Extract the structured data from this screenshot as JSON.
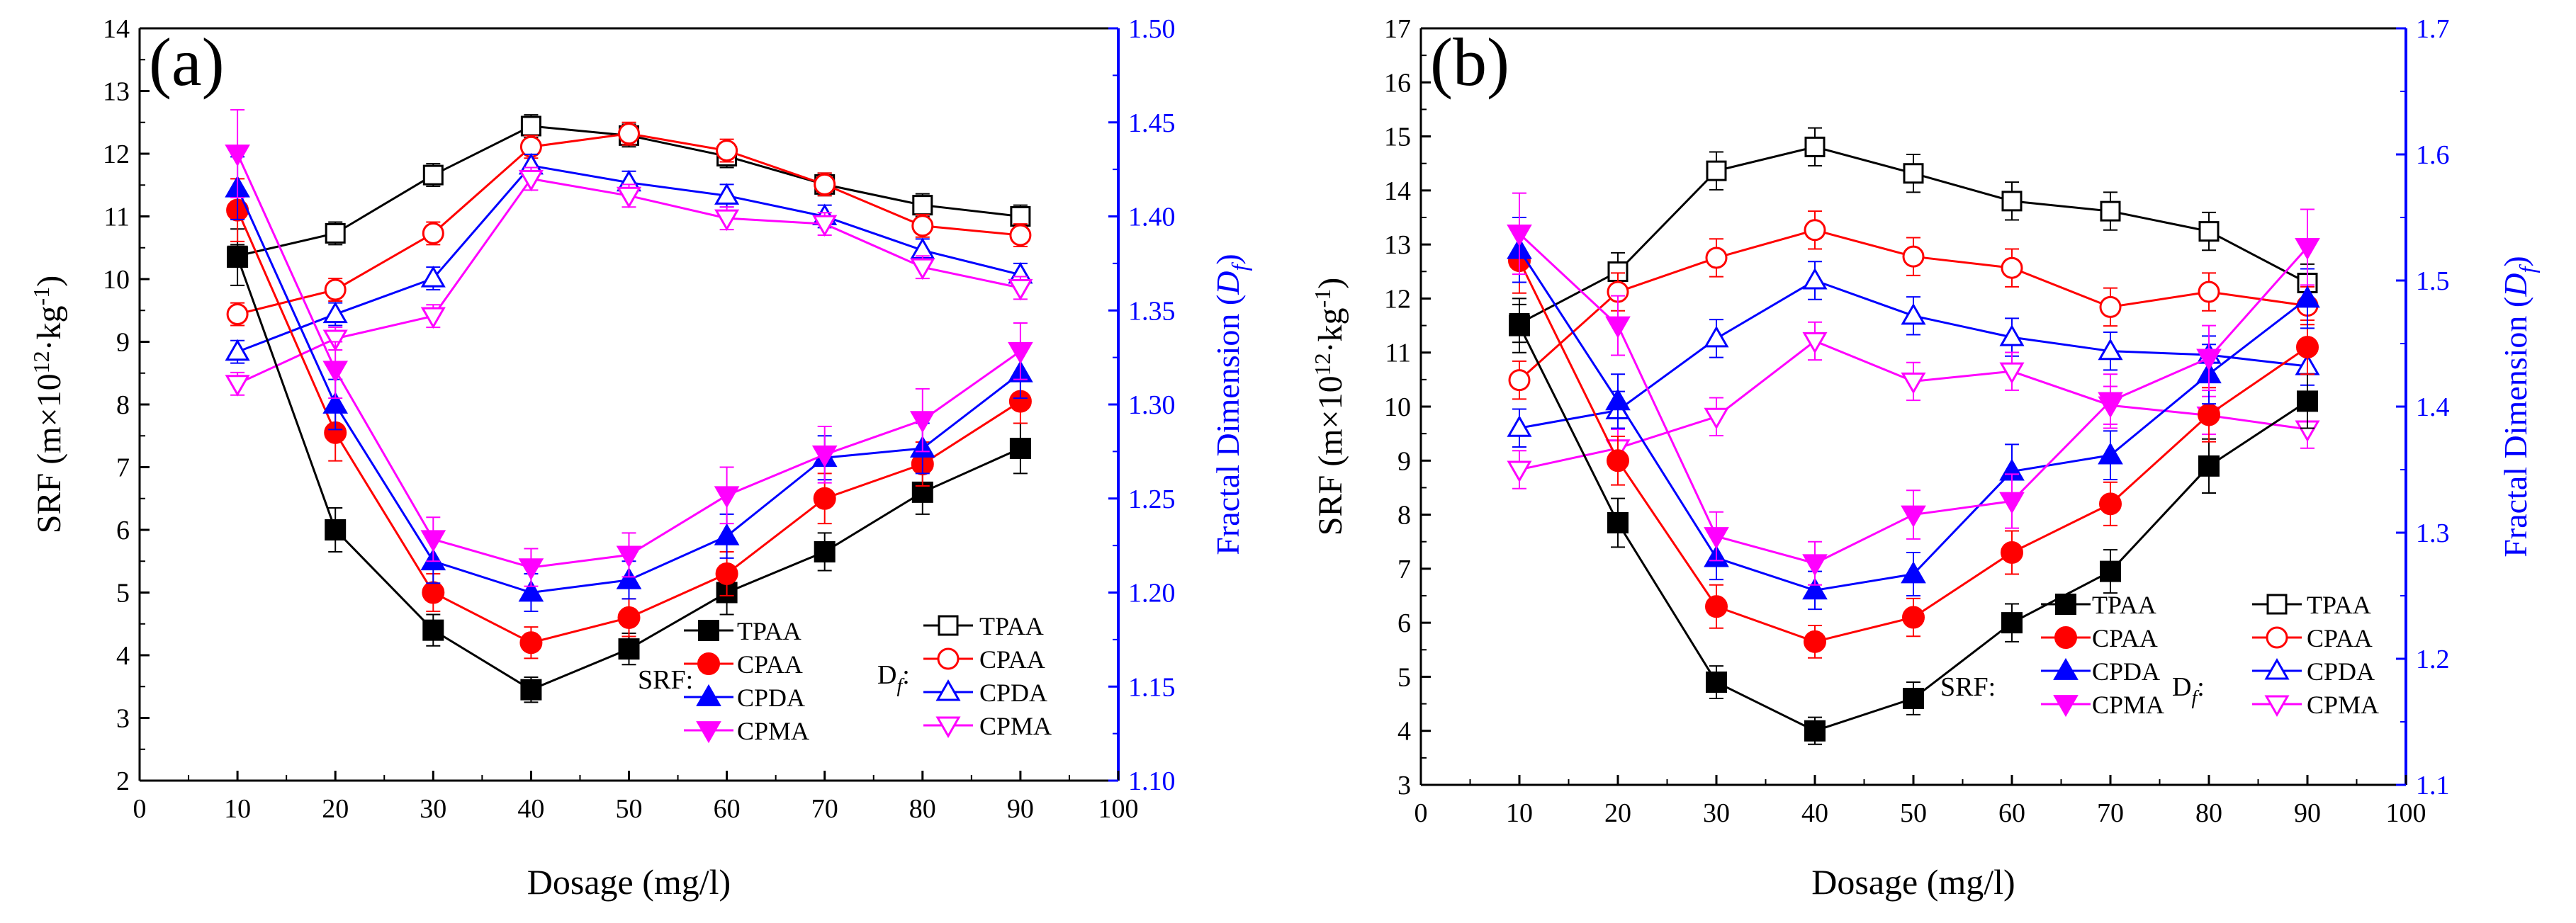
{
  "chart_data": [
    {
      "type": "line",
      "panel_label": "(a)",
      "xlabel": "Dosage (mg/l)",
      "ylabel_left": {
        "prefix": "SRF (m×10",
        "sup": "12",
        "suffix": "·kg",
        "sup2": "-1",
        "close": ")"
      },
      "ylabel_right": {
        "text": "Fractal Dimension (",
        "var": "D",
        "sub": "f",
        "close": ")"
      },
      "xlim": [
        0,
        100
      ],
      "xticks": [
        "0",
        "10",
        "20",
        "30",
        "40",
        "50",
        "60",
        "70",
        "80",
        "90",
        "100"
      ],
      "ylim_left": [
        2,
        14
      ],
      "yticks_left": [
        "2",
        "3",
        "4",
        "5",
        "6",
        "7",
        "8",
        "9",
        "10",
        "11",
        "12",
        "13",
        "14"
      ],
      "ylim_right": [
        1.1,
        1.5
      ],
      "yticks_right": [
        "1.10",
        "1.15",
        "1.20",
        "1.25",
        "1.30",
        "1.35",
        "1.40",
        "1.45",
        "1.50"
      ],
      "x": [
        10,
        20,
        30,
        40,
        50,
        60,
        70,
        80,
        90
      ],
      "legend": {
        "srf_group": "SRF:",
        "df_group": "D",
        "df_sub": "f",
        "df_colon": ":"
      },
      "srf_series": [
        {
          "name": "TPAA",
          "color": "#000000",
          "marker": "square",
          "values": [
            10.35,
            6.0,
            4.4,
            3.45,
            4.1,
            5.0,
            5.65,
            6.6,
            7.3
          ],
          "err": [
            0.45,
            0.35,
            0.25,
            0.2,
            0.25,
            0.35,
            0.3,
            0.35,
            0.4
          ]
        },
        {
          "name": "CPAA",
          "color": "#ff0000",
          "marker": "circle",
          "values": [
            11.1,
            7.55,
            5.0,
            4.2,
            4.6,
            5.3,
            6.5,
            7.05,
            8.05
          ],
          "err": [
            0.5,
            0.45,
            0.3,
            0.25,
            0.3,
            0.35,
            0.4,
            0.35,
            0.35
          ]
        },
        {
          "name": "CPDA",
          "color": "#0000ff",
          "marker": "triangle-up",
          "values": [
            11.45,
            8.0,
            5.5,
            5.0,
            5.2,
            5.9,
            7.15,
            7.3,
            8.5
          ],
          "err": [
            0.5,
            0.4,
            0.35,
            0.3,
            0.3,
            0.35,
            0.35,
            0.4,
            0.4
          ]
        },
        {
          "name": "CPMA",
          "color": "#ff00ff",
          "marker": "triangle-down",
          "values": [
            12.0,
            8.55,
            5.85,
            5.4,
            5.6,
            6.55,
            7.2,
            7.75,
            8.85
          ],
          "err": [
            0.7,
            0.45,
            0.35,
            0.3,
            0.35,
            0.45,
            0.45,
            0.5,
            0.45
          ]
        }
      ],
      "df_series": [
        {
          "name": "TPAA",
          "color": "#000000",
          "marker": "square-open",
          "values": [
            1.379,
            1.391,
            1.422,
            1.448,
            1.443,
            1.432,
            1.417,
            1.406,
            1.4
          ],
          "err": [
            0.006,
            0.006,
            0.006,
            0.006,
            0.006,
            0.006,
            0.006,
            0.006,
            0.006
          ]
        },
        {
          "name": "CPAA",
          "color": "#ff0000",
          "marker": "circle-open",
          "values": [
            1.348,
            1.361,
            1.391,
            1.437,
            1.444,
            1.435,
            1.417,
            1.395,
            1.39
          ],
          "err": [
            0.006,
            0.006,
            0.006,
            0.006,
            0.006,
            0.006,
            0.006,
            0.006,
            0.006
          ]
        },
        {
          "name": "CPDA",
          "color": "#0000ff",
          "marker": "triangle-up-open",
          "values": [
            1.328,
            1.348,
            1.367,
            1.427,
            1.418,
            1.411,
            1.4,
            1.382,
            1.369
          ],
          "err": [
            0.006,
            0.006,
            0.006,
            0.006,
            0.006,
            0.006,
            0.006,
            0.006,
            0.006
          ]
        },
        {
          "name": "CPMA",
          "color": "#ff00ff",
          "marker": "triangle-down-open",
          "values": [
            1.311,
            1.335,
            1.347,
            1.42,
            1.411,
            1.399,
            1.396,
            1.373,
            1.362
          ],
          "err": [
            0.006,
            0.006,
            0.006,
            0.006,
            0.006,
            0.006,
            0.006,
            0.006,
            0.006
          ]
        }
      ]
    },
    {
      "type": "line",
      "panel_label": "(b)",
      "xlabel": "Dosage (mg/l)",
      "ylabel_left": {
        "prefix": "SRF (m×10",
        "sup": "12",
        "suffix": "·kg",
        "sup2": "-1",
        "close": ")"
      },
      "ylabel_right": {
        "text": "Fractal Dimension (",
        "var": "D",
        "sub": "f",
        "close": ")"
      },
      "xlim": [
        0,
        100
      ],
      "xticks": [
        "0",
        "10",
        "20",
        "30",
        "40",
        "50",
        "60",
        "70",
        "80",
        "90",
        "100"
      ],
      "ylim_left": [
        3,
        17
      ],
      "yticks_left": [
        "3",
        "4",
        "5",
        "6",
        "7",
        "8",
        "9",
        "10",
        "11",
        "12",
        "13",
        "14",
        "15",
        "16",
        "17"
      ],
      "ylim_right": [
        1.1,
        1.7
      ],
      "yticks_right": [
        "1.1",
        "1.2",
        "1.3",
        "1.4",
        "1.5",
        "1.6",
        "1.7"
      ],
      "x": [
        10,
        20,
        30,
        40,
        50,
        60,
        70,
        80,
        90
      ],
      "legend": {
        "srf_group": "SRF:",
        "df_group": "D",
        "df_sub": "f",
        "df_colon": ":"
      },
      "srf_series": [
        {
          "name": "TPAA",
          "color": "#000000",
          "marker": "square",
          "values": [
            11.5,
            7.85,
            4.9,
            4.0,
            4.6,
            6.0,
            6.95,
            8.9,
            10.1
          ],
          "err": [
            0.5,
            0.45,
            0.3,
            0.25,
            0.3,
            0.35,
            0.4,
            0.5,
            0.5
          ]
        },
        {
          "name": "CPAA",
          "color": "#ff0000",
          "marker": "circle",
          "values": [
            12.7,
            9.0,
            6.3,
            5.65,
            6.1,
            7.3,
            8.2,
            9.85,
            11.1
          ],
          "err": [
            0.6,
            0.45,
            0.4,
            0.3,
            0.35,
            0.4,
            0.4,
            0.5,
            0.5
          ]
        },
        {
          "name": "CPDA",
          "color": "#0000ff",
          "marker": "triangle-up",
          "values": [
            12.9,
            10.1,
            7.2,
            6.6,
            6.9,
            8.8,
            9.1,
            10.6,
            12.0
          ],
          "err": [
            0.6,
            0.5,
            0.4,
            0.35,
            0.4,
            0.5,
            0.45,
            0.55,
            0.55
          ]
        },
        {
          "name": "CPMA",
          "color": "#ff00ff",
          "marker": "triangle-down",
          "values": [
            13.2,
            11.5,
            7.6,
            7.1,
            8.0,
            8.25,
            10.1,
            10.9,
            12.95
          ],
          "err": [
            0.75,
            0.55,
            0.45,
            0.4,
            0.45,
            0.5,
            0.5,
            0.6,
            0.7
          ]
        }
      ],
      "df_series": [
        {
          "name": "TPAA",
          "color": "#000000",
          "marker": "square-open",
          "values": [
            1.466,
            1.507,
            1.587,
            1.606,
            1.585,
            1.563,
            1.555,
            1.539,
            1.498
          ],
          "err": [
            0.015,
            0.015,
            0.015,
            0.015,
            0.015,
            0.015,
            0.015,
            0.015,
            0.015
          ]
        },
        {
          "name": "CPAA",
          "color": "#ff0000",
          "marker": "circle-open",
          "values": [
            1.421,
            1.491,
            1.518,
            1.54,
            1.519,
            1.51,
            1.479,
            1.491,
            1.48
          ],
          "err": [
            0.015,
            0.015,
            0.015,
            0.015,
            0.015,
            0.015,
            0.015,
            0.015,
            0.015
          ]
        },
        {
          "name": "CPDA",
          "color": "#0000ff",
          "marker": "triangle-up-open",
          "values": [
            1.383,
            1.397,
            1.454,
            1.5,
            1.472,
            1.455,
            1.444,
            1.441,
            1.432
          ],
          "err": [
            0.015,
            0.015,
            0.015,
            0.015,
            0.015,
            0.015,
            0.015,
            0.015,
            0.015
          ]
        },
        {
          "name": "CPMA",
          "color": "#ff00ff",
          "marker": "triangle-down-open",
          "values": [
            1.35,
            1.367,
            1.392,
            1.452,
            1.42,
            1.428,
            1.401,
            1.393,
            1.382
          ],
          "err": [
            0.015,
            0.015,
            0.015,
            0.015,
            0.015,
            0.015,
            0.015,
            0.015,
            0.015
          ]
        }
      ]
    }
  ]
}
